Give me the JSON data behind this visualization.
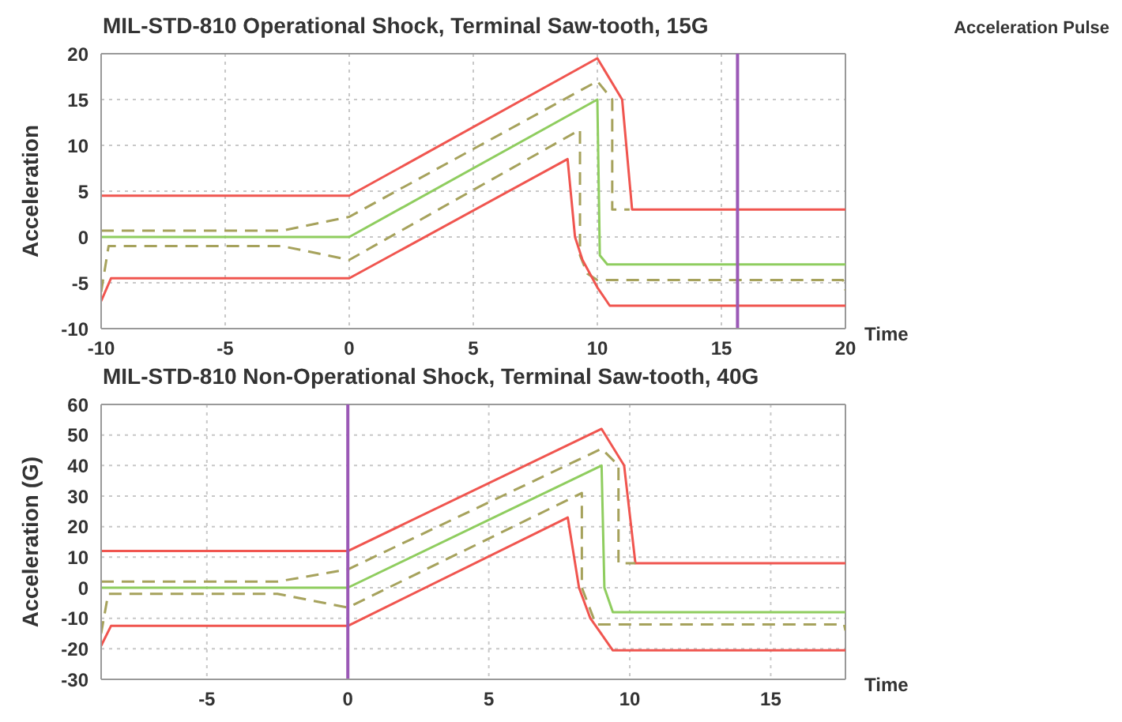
{
  "chart_data": [
    {
      "type": "line",
      "title": "MIL-STD-810 Operational Shock, Terminal Saw-tooth, 15G",
      "xlabel": "Time",
      "ylabel": "Acceleration",
      "annotations": [
        "Acceleration Pulse"
      ],
      "xlim": [
        -10,
        20
      ],
      "ylim": [
        -10,
        20
      ],
      "xticks": [
        -10,
        -5,
        0,
        5,
        10,
        15,
        20
      ],
      "yticks": [
        -10,
        -5,
        0,
        5,
        10,
        15,
        20
      ],
      "grid": true,
      "marker": "none",
      "ref_lines": [
        {
          "axis": "x",
          "value": 15.65,
          "color": "#9b59b6"
        }
      ],
      "series": [
        {
          "color": "#f0554f",
          "line_style": "solid",
          "x": [
            -10,
            0,
            10,
            11,
            11.4,
            20
          ],
          "values": [
            4.5,
            4.5,
            19.5,
            15,
            3,
            3
          ]
        },
        {
          "color": "#a6a25c",
          "line_style": "dashed",
          "x": [
            -10,
            -2.7,
            0,
            10,
            10.6,
            10.6,
            11.3
          ],
          "values": [
            0.7,
            0.7,
            2.2,
            17,
            15,
            3,
            3
          ]
        },
        {
          "color": "#8fcd5f",
          "line_style": "solid",
          "x": [
            -10,
            0,
            10,
            10.1,
            10.4,
            20
          ],
          "values": [
            0,
            0,
            15,
            -2,
            -3,
            -3
          ]
        },
        {
          "color": "#a6a25c",
          "line_style": "dashed",
          "x": [
            -10,
            -9.7,
            -2.7,
            0,
            9.3,
            9.3,
            9.6,
            10,
            19.9,
            20
          ],
          "values": [
            -6,
            -1,
            -1,
            -2.5,
            11.7,
            -2,
            -4,
            -4.7,
            -4.7,
            -5.8
          ]
        },
        {
          "color": "#f0554f",
          "line_style": "solid",
          "x": [
            -10,
            -9.6,
            0,
            8.8,
            9.1,
            9.4,
            10,
            10.5,
            20
          ],
          "values": [
            -7,
            -4.5,
            -4.5,
            8.5,
            0,
            -2.5,
            -5.5,
            -7.5,
            -7.5
          ]
        }
      ]
    },
    {
      "type": "line",
      "title": "MIL-STD-810 Non-Operational Shock, Terminal Saw-tooth, 40G",
      "xlabel": "Time",
      "ylabel": "Acceleration (G)",
      "xlim": [
        -8.75,
        17.65
      ],
      "ylim": [
        -30,
        60
      ],
      "xticks": [
        -5,
        0,
        5,
        10,
        15
      ],
      "yticks": [
        -30,
        -20,
        -10,
        0,
        10,
        20,
        30,
        40,
        50,
        60
      ],
      "grid": true,
      "marker": "none",
      "ref_lines": [
        {
          "axis": "x",
          "value": 0,
          "color": "#9b59b6"
        }
      ],
      "series": [
        {
          "color": "#f0554f",
          "line_style": "solid",
          "x": [
            -8.75,
            0,
            9,
            9.8,
            10.2,
            17.65
          ],
          "values": [
            12,
            12,
            52,
            40,
            8,
            8
          ]
        },
        {
          "color": "#a6a25c",
          "line_style": "dashed",
          "x": [
            -8.75,
            -2.5,
            0,
            9,
            9.6,
            9.6,
            10.2
          ],
          "values": [
            2,
            2,
            6,
            45.5,
            40,
            8,
            8
          ]
        },
        {
          "color": "#8fcd5f",
          "line_style": "solid",
          "x": [
            -8.75,
            0,
            9,
            9.1,
            9.4,
            17.65
          ],
          "values": [
            0,
            0,
            40,
            0,
            -8,
            -8
          ]
        },
        {
          "color": "#a6a25c",
          "line_style": "dashed",
          "x": [
            -8.75,
            -8.5,
            -2.5,
            0,
            8.3,
            8.3,
            8.8,
            17.6,
            17.65
          ],
          "values": [
            -15,
            -2,
            -2,
            -6.5,
            31,
            0,
            -12,
            -12,
            -14
          ]
        },
        {
          "color": "#f0554f",
          "line_style": "solid",
          "x": [
            -8.75,
            -8.4,
            0,
            7.8,
            8.2,
            8.6,
            9.4,
            17.65
          ],
          "values": [
            -19,
            -12.5,
            -12.5,
            23,
            0,
            -10,
            -20.5,
            -20.5
          ]
        }
      ]
    }
  ]
}
